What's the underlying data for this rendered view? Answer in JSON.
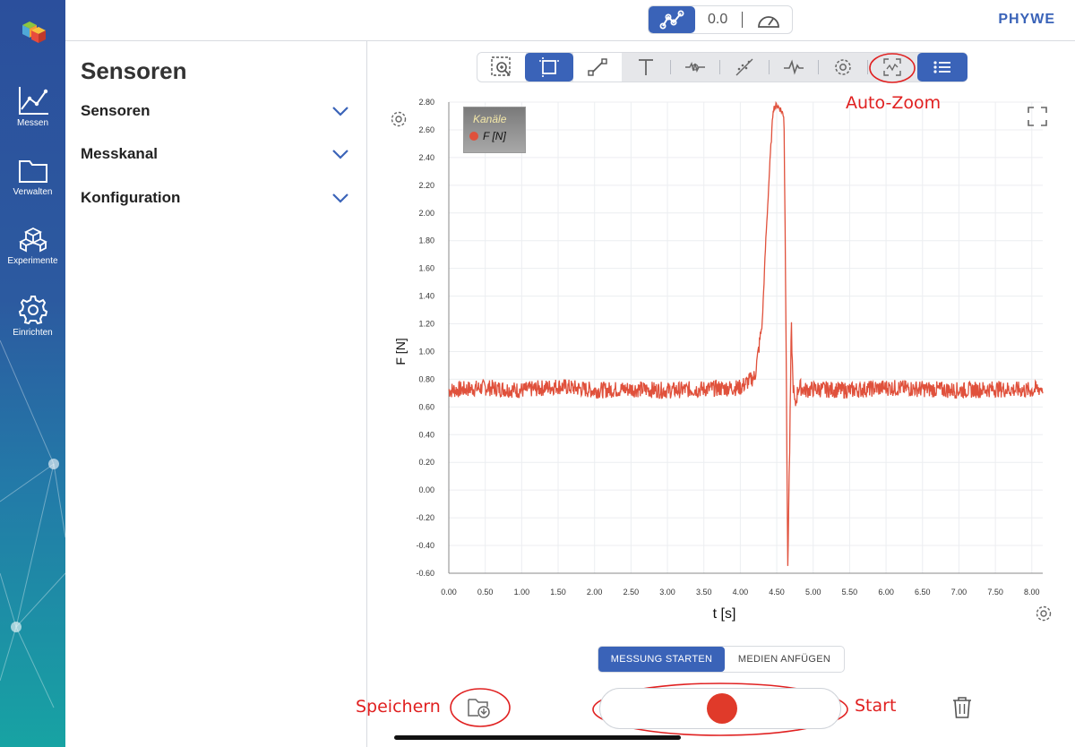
{
  "sidebar": {
    "items": [
      {
        "label": "Messen",
        "icon": "chart-icon"
      },
      {
        "label": "Verwalten",
        "icon": "folder-icon"
      },
      {
        "label": "Experimente",
        "icon": "cubes-icon"
      },
      {
        "label": "Einrichten",
        "icon": "gear-icon"
      }
    ]
  },
  "topbar": {
    "value": "0.0",
    "brand": "PHYWE"
  },
  "panel": {
    "title": "Sensoren",
    "sections": [
      "Sensoren",
      "Messkanal",
      "Konfiguration"
    ]
  },
  "toolbar": {
    "tools": [
      "zoom-area-icon",
      "fit-frame-icon",
      "line-tool-icon",
      "text-tool-icon",
      "smooth-icon",
      "regression-icon",
      "signal-icon",
      "settings-icon",
      "auto-zoom-icon",
      "list-icon"
    ],
    "active": [
      "fit-frame-icon",
      "list-icon"
    ]
  },
  "legend": {
    "title": "Kanäle",
    "entry": "F [N]",
    "color": "#e0513c"
  },
  "annotations": {
    "auto_zoom": "Auto-Zoom",
    "save": "Speichern",
    "start": "Start",
    "color": "#e02020"
  },
  "bottom": {
    "tab_active": "MESSUNG STARTEN",
    "tab_inactive": "MEDIEN ANFÜGEN"
  },
  "chart_data": {
    "type": "line",
    "xlabel": "t [s]",
    "ylabel": "F [N]",
    "xlim": [
      0,
      8.15
    ],
    "ylim": [
      -0.6,
      2.8
    ],
    "xticks": [
      "0.00",
      "0.50",
      "1.00",
      "1.50",
      "2.00",
      "2.50",
      "3.00",
      "3.50",
      "4.00",
      "4.50",
      "5.00",
      "5.50",
      "6.00",
      "6.50",
      "7.00",
      "7.50",
      "8.00"
    ],
    "yticks": [
      "2.80",
      "2.60",
      "2.40",
      "2.20",
      "2.00",
      "1.80",
      "1.60",
      "1.40",
      "1.20",
      "1.00",
      "0.80",
      "0.60",
      "0.40",
      "0.20",
      "0.00",
      "-0.20",
      "-0.40",
      "-0.60"
    ],
    "grid": true,
    "series": [
      {
        "name": "F [N]",
        "color": "#e0513c",
        "x": [
          0.0,
          0.5,
          1.0,
          1.5,
          2.0,
          2.5,
          3.0,
          3.5,
          4.0,
          4.2,
          4.3,
          4.35,
          4.4,
          4.45,
          4.5,
          4.55,
          4.6,
          4.63,
          4.65,
          4.68,
          4.7,
          4.72,
          4.75,
          4.8,
          4.9,
          5.0,
          5.5,
          6.0,
          6.5,
          7.0,
          7.5,
          8.0,
          8.15
        ],
        "y": [
          0.72,
          0.74,
          0.72,
          0.75,
          0.72,
          0.73,
          0.72,
          0.73,
          0.74,
          0.82,
          1.2,
          1.8,
          2.3,
          2.75,
          2.78,
          2.75,
          2.7,
          1.0,
          -0.6,
          0.4,
          1.2,
          0.8,
          0.6,
          0.75,
          0.72,
          0.73,
          0.72,
          0.74,
          0.73,
          0.72,
          0.73,
          0.72,
          0.74
        ],
        "noise": 0.06
      }
    ]
  }
}
